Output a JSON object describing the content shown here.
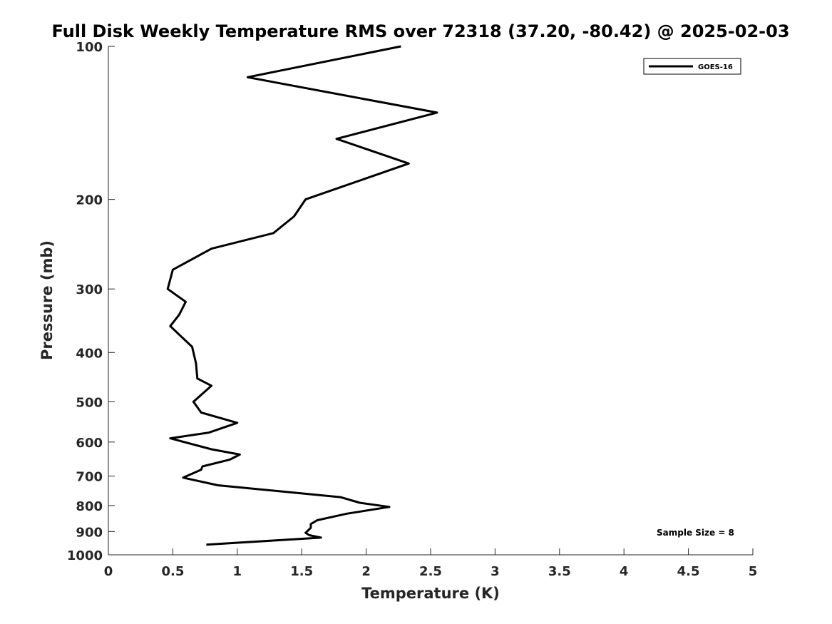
{
  "chart_data": {
    "type": "line",
    "title": "Full Disk Weekly Temperature RMS over 72318 (37.20, -80.42) @ 2025-02-03",
    "xlabel": "Temperature (K)",
    "ylabel": "Pressure (mb)",
    "xlim": [
      0,
      5
    ],
    "ylim": [
      100,
      1000
    ],
    "y_scale": "log",
    "y_reversed": true,
    "x_ticks": [
      "0",
      "0.5",
      "1",
      "1.5",
      "2",
      "2.5",
      "3",
      "3.5",
      "4",
      "4.5",
      "5"
    ],
    "x_tick_values": [
      0,
      0.5,
      1,
      1.5,
      2,
      2.5,
      3,
      3.5,
      4,
      4.5,
      5
    ],
    "y_ticks": [
      "100",
      "200",
      "300",
      "400",
      "500",
      "600",
      "700",
      "800",
      "900",
      "1000"
    ],
    "y_tick_values": [
      100,
      200,
      300,
      400,
      500,
      600,
      700,
      800,
      900,
      1000
    ],
    "grid": false,
    "legend_position": "top-right",
    "annotation": "Sample Size = 8",
    "series": [
      {
        "name": "GOES-16",
        "color": "#000000",
        "points": [
          [
            2.27,
            100
          ],
          [
            1.08,
            115
          ],
          [
            2.55,
            135
          ],
          [
            1.77,
            152
          ],
          [
            2.33,
            170
          ],
          [
            1.53,
            200
          ],
          [
            1.44,
            216
          ],
          [
            1.28,
            233
          ],
          [
            0.8,
            250
          ],
          [
            0.5,
            275
          ],
          [
            0.46,
            300
          ],
          [
            0.6,
            318
          ],
          [
            0.55,
            337
          ],
          [
            0.48,
            355
          ],
          [
            0.65,
            390
          ],
          [
            0.68,
            420
          ],
          [
            0.69,
            450
          ],
          [
            0.8,
            465
          ],
          [
            0.66,
            500
          ],
          [
            0.72,
            525
          ],
          [
            1.0,
            550
          ],
          [
            0.78,
            575
          ],
          [
            0.48,
            590
          ],
          [
            0.8,
            620
          ],
          [
            1.02,
            635
          ],
          [
            0.94,
            650
          ],
          [
            0.73,
            670
          ],
          [
            0.72,
            680
          ],
          [
            0.58,
            705
          ],
          [
            0.85,
            730
          ],
          [
            1.8,
            770
          ],
          [
            1.95,
            790
          ],
          [
            2.18,
            805
          ],
          [
            1.85,
            830
          ],
          [
            1.62,
            855
          ],
          [
            1.57,
            870
          ],
          [
            1.57,
            885
          ],
          [
            1.53,
            905
          ],
          [
            1.56,
            915
          ],
          [
            1.65,
            925
          ],
          [
            0.76,
            955
          ]
        ]
      }
    ]
  }
}
